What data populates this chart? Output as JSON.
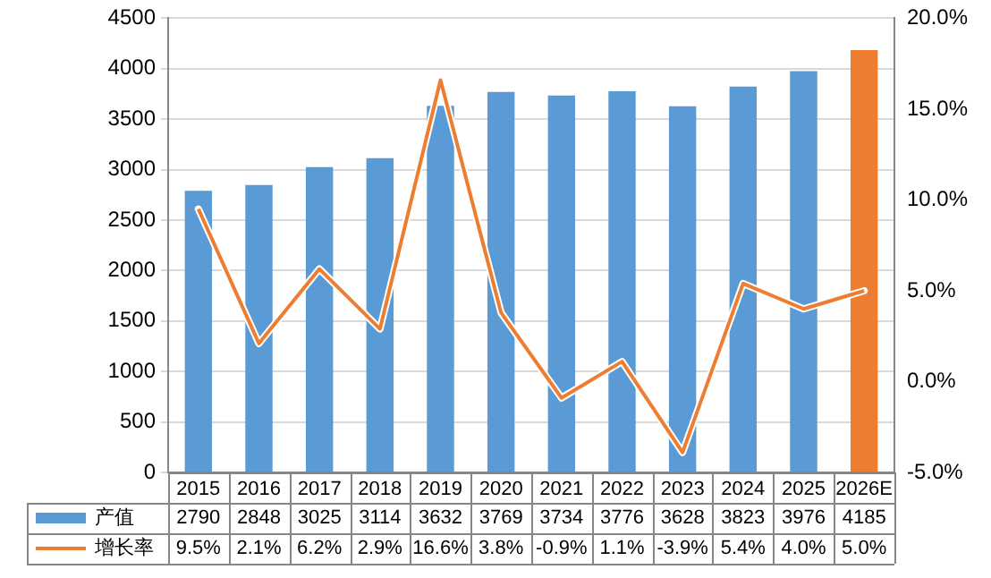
{
  "chart_data": {
    "type": "bar",
    "categories": [
      "2015",
      "2016",
      "2017",
      "2018",
      "2019",
      "2020",
      "2021",
      "2022",
      "2023",
      "2024",
      "2025",
      "2026E"
    ],
    "series": [
      {
        "name": "产值",
        "color": "#5b9bd5",
        "colors": [
          "#5b9bd5",
          "#5b9bd5",
          "#5b9bd5",
          "#5b9bd5",
          "#5b9bd5",
          "#5b9bd5",
          "#5b9bd5",
          "#5b9bd5",
          "#5b9bd5",
          "#5b9bd5",
          "#5b9bd5",
          "#ed7d31"
        ],
        "values": [
          2790,
          2848,
          3025,
          3114,
          3632,
          3769,
          3734,
          3776,
          3628,
          3823,
          3976,
          4185
        ]
      },
      {
        "name": "增长率",
        "type": "line",
        "axis": "y2",
        "color": "#ed7d31",
        "values": [
          9.5,
          2.1,
          6.2,
          2.9,
          16.6,
          3.8,
          -0.9,
          1.1,
          -3.9,
          5.4,
          4.0,
          5.0
        ],
        "value_labels": [
          "9.5%",
          "2.1%",
          "6.2%",
          "2.9%",
          "16.6%",
          "3.8%",
          "-0.9%",
          "1.1%",
          "-3.9%",
          "5.4%",
          "4.0%",
          "5.0%"
        ]
      }
    ],
    "ylim": [
      0,
      4500
    ],
    "yticks": [
      0,
      500,
      1000,
      1500,
      2000,
      2500,
      3000,
      3500,
      4000,
      4500
    ],
    "y2lim": [
      -5,
      20
    ],
    "y2ticks": [
      {
        "value": -5,
        "label": "-5.0%"
      },
      {
        "value": 0,
        "label": "0.0%"
      },
      {
        "value": 5,
        "label": "5.0%"
      },
      {
        "value": 10,
        "label": "10.0%"
      },
      {
        "value": 15,
        "label": "15.0%"
      },
      {
        "value": 20,
        "label": "20.0%"
      }
    ],
    "grid": "y",
    "legend": "bottom",
    "data_labels": true,
    "marker": "none",
    "line_style": "solid"
  }
}
